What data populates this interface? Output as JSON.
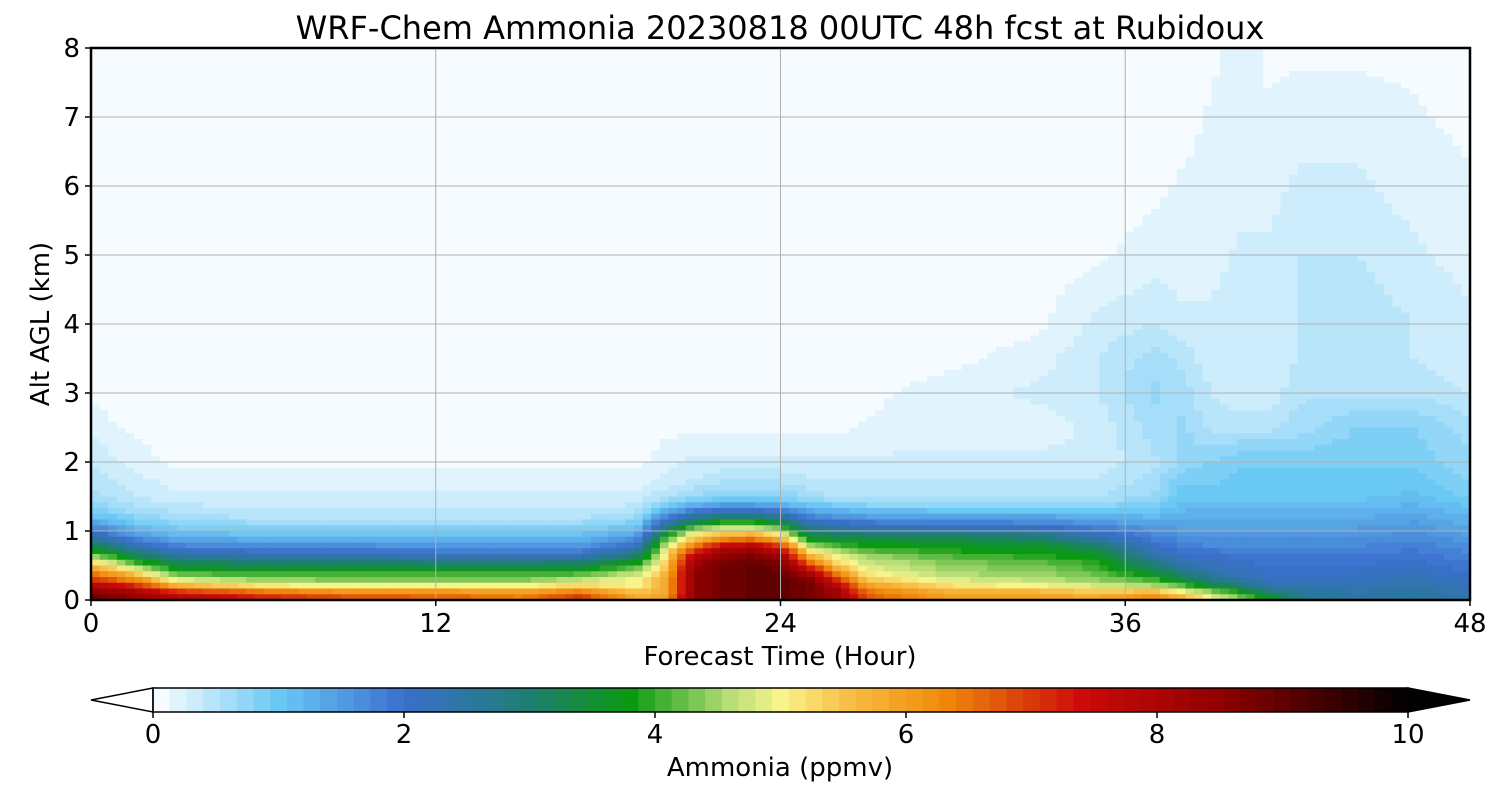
{
  "chart_data": {
    "type": "heatmap",
    "subtype": "filled-contour time-height cross section",
    "title": "WRF-Chem Ammonia  20230818 00UTC 48h fcst at Rubidoux",
    "xlabel": "Forecast Time (Hour)",
    "ylabel": "Alt AGL (km)",
    "xlim": [
      0,
      48
    ],
    "ylim": [
      0,
      8
    ],
    "x_ticks": [
      0,
      12,
      24,
      36,
      48
    ],
    "y_ticks": [
      0,
      1,
      2,
      3,
      4,
      5,
      6,
      7,
      8
    ],
    "grid": true,
    "colorbar": {
      "label": "Ammonia  (ppmv)",
      "orientation": "horizontal",
      "location": "bottom",
      "min": 0,
      "max": 10,
      "ticks": [
        0,
        2,
        4,
        6,
        8,
        10
      ],
      "extend": "both",
      "levels": 75,
      "color_stops": [
        {
          "v": 0.0,
          "color": "#ffffff"
        },
        {
          "v": 1.0,
          "color": "#6ac8f5"
        },
        {
          "v": 2.0,
          "color": "#3a6fce"
        },
        {
          "v": 3.0,
          "color": "#1f7e72"
        },
        {
          "v": 3.8,
          "color": "#0a9a12"
        },
        {
          "v": 4.6,
          "color": "#b8de78"
        },
        {
          "v": 5.0,
          "color": "#f8f48c"
        },
        {
          "v": 5.6,
          "color": "#f8b840"
        },
        {
          "v": 6.3,
          "color": "#f08a0a"
        },
        {
          "v": 7.4,
          "color": "#cc0a0a"
        },
        {
          "v": 8.5,
          "color": "#900000"
        },
        {
          "v": 10.0,
          "color": "#000000"
        }
      ],
      "under_color": "#ffffff",
      "over_color": "#000000"
    },
    "grid_x": [
      0,
      1.5,
      3,
      6,
      9,
      12,
      15,
      17,
      19,
      20,
      21,
      22,
      23,
      24,
      25,
      26,
      27,
      30,
      33,
      35,
      37,
      38,
      39,
      40,
      41,
      42,
      44,
      46,
      48
    ],
    "grid_y": [
      0,
      0.1,
      0.2,
      0.3,
      0.4,
      0.5,
      0.6,
      0.7,
      0.8,
      0.9,
      1.0,
      1.1,
      1.2,
      1.3,
      1.4,
      1.5,
      1.75,
      2.0,
      2.5,
      3.0,
      3.5,
      4.0,
      5.0,
      6.0,
      7.0,
      8.0
    ],
    "z": [
      [
        9.0,
        8.6,
        8.0,
        7.4,
        7.0,
        6.8,
        6.5,
        7.2,
        6.0,
        6.0,
        8.5,
        8.8,
        9.0,
        9.0,
        8.8,
        8.2,
        6.8,
        6.0,
        6.0,
        6.0,
        6.5,
        6.0,
        5.0,
        4.5,
        4.0,
        2.8,
        2.5,
        2.6,
        2.4
      ],
      [
        8.7,
        8.2,
        7.4,
        6.8,
        6.4,
        6.4,
        6.2,
        6.6,
        5.6,
        5.8,
        8.5,
        8.8,
        9.0,
        9.0,
        8.8,
        8.2,
        6.6,
        5.8,
        5.8,
        5.6,
        5.8,
        5.2,
        4.6,
        4.0,
        3.0,
        2.6,
        2.4,
        2.5,
        2.3
      ],
      [
        8.0,
        7.3,
        5.8,
        5.2,
        5.0,
        5.0,
        5.0,
        5.4,
        5.0,
        5.8,
        8.5,
        8.8,
        9.0,
        9.0,
        8.8,
        7.8,
        6.0,
        5.2,
        5.0,
        4.8,
        4.6,
        4.2,
        3.5,
        3.0,
        2.4,
        2.4,
        2.3,
        2.4,
        2.2
      ],
      [
        7.0,
        6.2,
        4.8,
        4.4,
        4.3,
        4.3,
        4.3,
        4.6,
        5.0,
        5.8,
        8.5,
        8.8,
        9.0,
        9.0,
        8.6,
        7.0,
        5.4,
        4.8,
        4.6,
        4.4,
        4.0,
        3.4,
        2.8,
        2.4,
        2.2,
        2.2,
        2.2,
        2.3,
        2.1
      ],
      [
        6.4,
        5.4,
        4.0,
        3.9,
        3.9,
        3.9,
        3.9,
        4.0,
        4.6,
        5.6,
        8.5,
        8.8,
        9.0,
        9.0,
        8.0,
        6.2,
        5.0,
        4.5,
        4.4,
        4.2,
        3.5,
        2.9,
        2.4,
        2.2,
        2.1,
        2.1,
        2.1,
        2.2,
        2.0
      ],
      [
        5.6,
        4.4,
        3.4,
        3.3,
        3.3,
        3.2,
        3.2,
        3.3,
        4.0,
        5.4,
        8.3,
        8.8,
        9.0,
        8.8,
        7.0,
        5.4,
        4.8,
        4.4,
        4.3,
        4.0,
        3.0,
        2.4,
        2.2,
        2.1,
        2.0,
        2.0,
        2.0,
        2.1,
        1.9
      ],
      [
        4.8,
        3.6,
        2.8,
        2.6,
        2.6,
        2.5,
        2.5,
        2.5,
        3.3,
        5.2,
        8.0,
        8.6,
        8.8,
        8.5,
        6.0,
        5.0,
        4.6,
        4.2,
        4.0,
        3.8,
        2.6,
        2.2,
        2.1,
        2.0,
        1.9,
        1.9,
        1.9,
        2.0,
        1.8
      ],
      [
        4.0,
        2.8,
        2.2,
        2.0,
        2.0,
        1.9,
        1.9,
        1.9,
        2.6,
        5.0,
        7.2,
        8.2,
        8.4,
        7.8,
        5.2,
        4.6,
        4.2,
        3.9,
        3.8,
        3.4,
        2.2,
        2.0,
        1.9,
        1.8,
        1.8,
        1.8,
        1.8,
        1.9,
        1.7
      ],
      [
        3.2,
        2.2,
        1.7,
        1.6,
        1.6,
        1.5,
        1.5,
        1.5,
        2.0,
        4.6,
        6.2,
        7.4,
        7.6,
        6.8,
        4.4,
        4.0,
        3.8,
        3.6,
        3.5,
        3.0,
        2.0,
        1.8,
        1.7,
        1.7,
        1.7,
        1.7,
        1.7,
        1.8,
        1.6
      ],
      [
        2.6,
        1.7,
        1.3,
        1.2,
        1.2,
        1.2,
        1.2,
        1.2,
        1.6,
        4.0,
        5.4,
        6.0,
        6.2,
        5.6,
        3.6,
        3.4,
        3.4,
        3.3,
        3.0,
        2.4,
        1.8,
        1.7,
        1.6,
        1.6,
        1.6,
        1.6,
        1.6,
        1.7,
        1.5
      ],
      [
        2.0,
        1.3,
        1.0,
        0.9,
        0.9,
        0.9,
        0.9,
        0.9,
        1.2,
        3.2,
        4.8,
        5.2,
        5.2,
        4.6,
        3.0,
        2.8,
        2.6,
        2.5,
        2.4,
        2.0,
        1.6,
        1.5,
        1.5,
        1.5,
        1.5,
        1.5,
        1.5,
        1.6,
        1.4
      ],
      [
        1.5,
        1.0,
        0.8,
        0.7,
        0.7,
        0.7,
        0.7,
        0.7,
        0.9,
        2.4,
        3.6,
        4.2,
        4.2,
        3.6,
        2.4,
        2.2,
        2.0,
        1.9,
        1.8,
        1.6,
        1.4,
        1.4,
        1.4,
        1.4,
        1.4,
        1.4,
        1.4,
        1.5,
        1.3
      ],
      [
        1.1,
        0.8,
        0.6,
        0.5,
        0.5,
        0.5,
        0.5,
        0.5,
        0.7,
        1.8,
        2.6,
        3.0,
        3.0,
        2.6,
        1.8,
        1.6,
        1.5,
        1.5,
        1.4,
        1.3,
        1.2,
        1.3,
        1.3,
        1.3,
        1.3,
        1.3,
        1.3,
        1.4,
        1.2
      ],
      [
        0.9,
        0.6,
        0.5,
        0.4,
        0.4,
        0.4,
        0.4,
        0.4,
        0.5,
        1.2,
        1.8,
        2.0,
        2.0,
        1.8,
        1.3,
        1.2,
        1.1,
        1.0,
        1.0,
        1.0,
        1.0,
        1.2,
        1.2,
        1.2,
        1.2,
        1.2,
        1.2,
        1.3,
        1.1
      ],
      [
        0.7,
        0.5,
        0.4,
        0.3,
        0.3,
        0.3,
        0.3,
        0.3,
        0.4,
        0.8,
        1.1,
        1.3,
        1.3,
        1.2,
        0.9,
        0.8,
        0.7,
        0.7,
        0.7,
        0.7,
        0.8,
        1.1,
        1.1,
        1.1,
        1.1,
        1.1,
        1.1,
        1.2,
        1.0
      ],
      [
        0.6,
        0.4,
        0.3,
        0.3,
        0.3,
        0.3,
        0.3,
        0.3,
        0.3,
        0.5,
        0.7,
        0.8,
        0.8,
        0.8,
        0.6,
        0.5,
        0.5,
        0.5,
        0.5,
        0.5,
        0.7,
        1.0,
        1.0,
        1.0,
        1.0,
        1.0,
        1.0,
        1.1,
        0.9
      ],
      [
        0.5,
        0.3,
        0.2,
        0.2,
        0.2,
        0.2,
        0.2,
        0.2,
        0.2,
        0.3,
        0.4,
        0.5,
        0.5,
        0.5,
        0.4,
        0.4,
        0.4,
        0.4,
        0.4,
        0.4,
        0.6,
        0.9,
        0.9,
        1.0,
        1.0,
        1.0,
        1.0,
        1.0,
        0.8
      ],
      [
        0.4,
        0.2,
        0.1,
        0.1,
        0.1,
        0.1,
        0.1,
        0.1,
        0.1,
        0.2,
        0.3,
        0.3,
        0.3,
        0.3,
        0.3,
        0.3,
        0.3,
        0.3,
        0.3,
        0.3,
        0.5,
        0.7,
        0.8,
        0.9,
        0.9,
        0.9,
        0.9,
        0.9,
        0.7
      ],
      [
        0.2,
        0.1,
        0.05,
        0.05,
        0.05,
        0.05,
        0.05,
        0.05,
        0.05,
        0.1,
        0.1,
        0.1,
        0.1,
        0.1,
        0.1,
        0.1,
        0.15,
        0.2,
        0.2,
        0.3,
        0.6,
        0.7,
        0.5,
        0.5,
        0.5,
        0.6,
        0.8,
        0.8,
        0.6
      ],
      [
        0.1,
        0.05,
        0.05,
        0.05,
        0.05,
        0.05,
        0.05,
        0.05,
        0.05,
        0.05,
        0.05,
        0.05,
        0.05,
        0.05,
        0.05,
        0.05,
        0.1,
        0.2,
        0.3,
        0.4,
        0.7,
        0.6,
        0.4,
        0.3,
        0.3,
        0.5,
        0.5,
        0.5,
        0.4
      ],
      [
        0.05,
        0.05,
        0.05,
        0.05,
        0.05,
        0.05,
        0.05,
        0.05,
        0.05,
        0.05,
        0.05,
        0.05,
        0.05,
        0.05,
        0.05,
        0.05,
        0.05,
        0.1,
        0.2,
        0.4,
        0.6,
        0.5,
        0.3,
        0.3,
        0.3,
        0.4,
        0.4,
        0.4,
        0.3
      ],
      [
        0.05,
        0.05,
        0.05,
        0.05,
        0.05,
        0.05,
        0.05,
        0.05,
        0.05,
        0.05,
        0.05,
        0.05,
        0.05,
        0.05,
        0.05,
        0.05,
        0.05,
        0.05,
        0.1,
        0.3,
        0.4,
        0.3,
        0.3,
        0.4,
        0.4,
        0.4,
        0.5,
        0.4,
        0.3
      ],
      [
        0.05,
        0.05,
        0.05,
        0.05,
        0.05,
        0.05,
        0.05,
        0.05,
        0.05,
        0.05,
        0.05,
        0.05,
        0.05,
        0.05,
        0.05,
        0.05,
        0.05,
        0.05,
        0.05,
        0.1,
        0.2,
        0.2,
        0.2,
        0.3,
        0.3,
        0.4,
        0.4,
        0.3,
        0.2
      ],
      [
        0.05,
        0.05,
        0.05,
        0.05,
        0.05,
        0.05,
        0.05,
        0.05,
        0.05,
        0.05,
        0.05,
        0.05,
        0.05,
        0.05,
        0.05,
        0.05,
        0.05,
        0.05,
        0.05,
        0.05,
        0.1,
        0.15,
        0.15,
        0.2,
        0.2,
        0.3,
        0.3,
        0.2,
        0.15
      ],
      [
        0.05,
        0.05,
        0.05,
        0.05,
        0.05,
        0.05,
        0.05,
        0.05,
        0.05,
        0.05,
        0.05,
        0.05,
        0.05,
        0.05,
        0.05,
        0.05,
        0.05,
        0.05,
        0.05,
        0.05,
        0.05,
        0.1,
        0.15,
        0.2,
        0.15,
        0.2,
        0.2,
        0.15,
        0.1
      ],
      [
        0.05,
        0.05,
        0.05,
        0.05,
        0.05,
        0.05,
        0.05,
        0.05,
        0.05,
        0.05,
        0.05,
        0.05,
        0.05,
        0.05,
        0.05,
        0.05,
        0.05,
        0.05,
        0.05,
        0.05,
        0.05,
        0.05,
        0.1,
        0.2,
        0.1,
        0.1,
        0.1,
        0.1,
        0.05
      ]
    ]
  }
}
